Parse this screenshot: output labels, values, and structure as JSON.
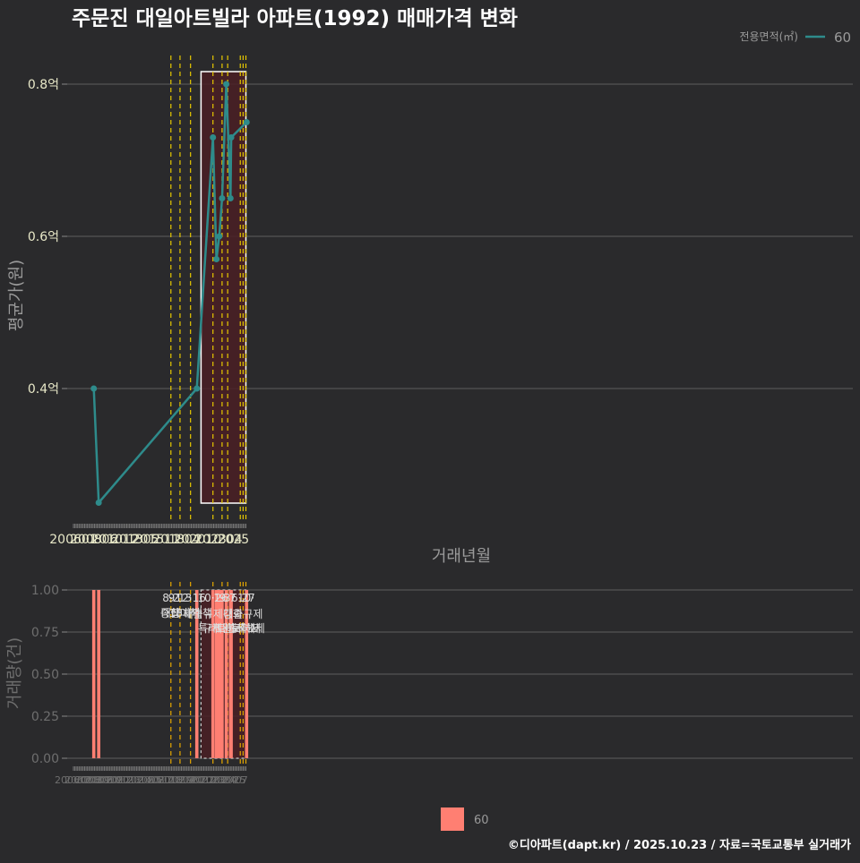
{
  "title": "주문진 대일아트빌라 아파트(1992) 매매가격 변화",
  "legend": {
    "title": "전용면적(㎡)",
    "entry": "60"
  },
  "bottom_legend": {
    "entry": "60"
  },
  "footer": "©디아파트(dapt.kr) / 2025.10.23 / 자료=국토교통부 실거래가",
  "colors": {
    "background": "#2a2a2c",
    "line": "#2e8b8b",
    "bar": "#ff7f72",
    "policy": "#e6c800",
    "highlight": "#4a1f24"
  },
  "chart_data": [
    {
      "type": "line",
      "title": "주문진 대일아트빌라 아파트(1992) 매매가격 변화",
      "xlabel": "거래년월",
      "ylabel": "평균가(원)",
      "xticks": [
        "200601",
        "200806",
        "201012",
        "201305",
        "201511",
        "201804",
        "202010",
        "202304",
        "2025"
      ],
      "yticks": [
        "0.4억",
        "0.6억",
        "0.8억"
      ],
      "ylim": [
        0.245,
        0.845
      ],
      "series": [
        {
          "name": "60",
          "points": [
            {
              "x": "2008-06",
              "y": 0.4
            },
            {
              "x": "2009-01",
              "y": 0.25
            },
            {
              "x": "2020-09",
              "y": 0.4
            },
            {
              "x": "2022-08",
              "y": 0.73
            },
            {
              "x": "2023-01",
              "y": 0.57
            },
            {
              "x": "2023-05",
              "y": 0.6
            },
            {
              "x": "2023-09",
              "y": 0.65
            },
            {
              "x": "2024-03",
              "y": 0.8
            },
            {
              "x": "2024-09",
              "y": 0.65
            },
            {
              "x": "2024-10",
              "y": 0.73
            },
            {
              "x": "2026-08",
              "y": 0.75
            }
          ]
        }
      ],
      "policy_lines": [
        "2017-08",
        "2018-09",
        "2019-12",
        "2022-08",
        "2023-09",
        "2024-05",
        "2025-11",
        "2026-03",
        "2026-07"
      ],
      "highlight": {
        "from": "2021-03",
        "to": "2026-07"
      }
    },
    {
      "type": "bar",
      "ylabel": "거래량(건)",
      "xticks": [
        "200601",
        "200703",
        "200806",
        "200909",
        "201012",
        "201202",
        "201305",
        "201408",
        "201511",
        "201701",
        "201804",
        "201907",
        "202010",
        "202201",
        "202304",
        "202407",
        "2025"
      ],
      "yticks": [
        "0.00",
        "0.25",
        "0.50",
        "0.75",
        "1.00"
      ],
      "ylim": [
        -0.04,
        1.04
      ],
      "bars": [
        {
          "x": "2008-06",
          "value": 1
        },
        {
          "x": "2009-01",
          "value": 1
        },
        {
          "x": "2020-09",
          "value": 1
        },
        {
          "x": "2022-08",
          "value": 1
        },
        {
          "x": "2023-01",
          "value": 1
        },
        {
          "x": "2023-05",
          "value": 1
        },
        {
          "x": "2023-09",
          "value": 1
        },
        {
          "x": "2024-03",
          "value": 1
        },
        {
          "x": "2024-09",
          "value": 1
        },
        {
          "x": "2024-10",
          "value": 1
        },
        {
          "x": "2026-08",
          "value": 1
        }
      ],
      "policy_lines": [
        "2017-08",
        "2018-09",
        "2019-12",
        "2022-08",
        "2023-09",
        "2024-05",
        "2025-11",
        "2026-03",
        "2026-07"
      ],
      "annotations": [
        {
          "x": "2017-08",
          "date": "8·2",
          "label": "대책"
        },
        {
          "x": "2018-09",
          "date": "9·13",
          "label": "종합대책"
        },
        {
          "x": "2019-12",
          "date": "12·16",
          "label": "18차대책"
        },
        {
          "x": "2022-08",
          "date": "10·26",
          "label": "대출규제강화"
        },
        {
          "x": "2023-09",
          "date": "1·3",
          "label": "규제완화"
        },
        {
          "x": "2024-05",
          "date": "9·7",
          "label": "특례대출축소"
        },
        {
          "x": "2025-11",
          "date": "",
          "label": "토허제해제"
        },
        {
          "x": "2026-03",
          "date": "6·27",
          "label": "대출규제"
        },
        {
          "x": "2026-07",
          "date": "10·",
          "label": "토허제"
        }
      ],
      "highlight": {
        "from": "2021-03",
        "to": "2026-07"
      }
    }
  ]
}
